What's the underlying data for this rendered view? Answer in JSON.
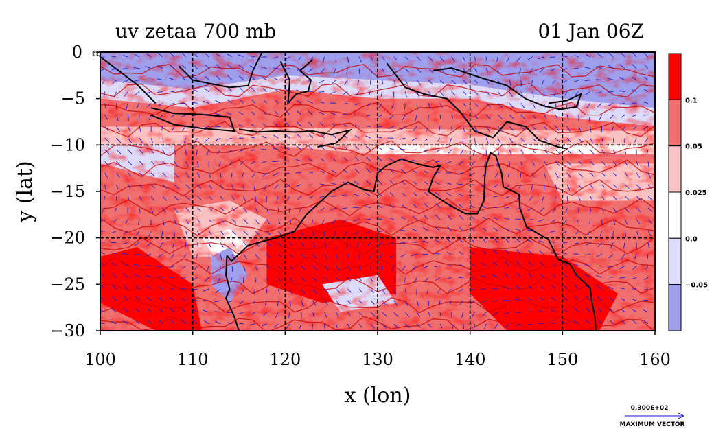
{
  "chart_data": {
    "type": "heatmap",
    "title_left": "uv zetaa 700 mb",
    "title_right": "01 Jan 06Z",
    "xlabel": "x (lon)",
    "ylabel": "y (lat)",
    "xlim": [
      100,
      160
    ],
    "ylim": [
      -30,
      0
    ],
    "x_ticks": [
      100,
      110,
      120,
      130,
      140,
      150,
      160
    ],
    "y_ticks": [
      0,
      -5,
      -10,
      -15,
      -20,
      -25,
      -30
    ],
    "x_tick_labels": [
      "100",
      "110",
      "120",
      "130",
      "140",
      "150",
      "160"
    ],
    "y_tick_labels": [
      "0",
      "−5",
      "−10",
      "−15",
      "−20",
      "−25",
      "−30"
    ],
    "y_top_marker": "EQ",
    "grid": true,
    "colorbar": {
      "levels": [
        "0.1",
        "0.05",
        "0.025",
        "0.0",
        "−0.05"
      ],
      "colors": [
        "#ff0000",
        "#f07070",
        "#fac3c3",
        "#ffffff",
        "#dcdcfa",
        "#9ea0ee"
      ]
    },
    "vector_reference": {
      "value": "0.300E+02",
      "label": "MAXIMUM VECTOR"
    },
    "colors": {
      "strong_positive": "#ff0000",
      "positive": "#f07070",
      "weak_positive": "#fac3c3",
      "weak_negative": "#dcdcfa",
      "negative": "#9ea0ee",
      "contour": "#c80000",
      "vectors": "#1a1acc",
      "coast": "#000000"
    }
  }
}
